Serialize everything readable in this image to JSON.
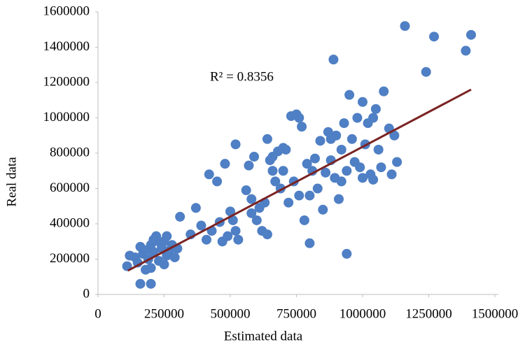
{
  "chart_data": {
    "type": "scatter",
    "xlabel": "Estimated data",
    "ylabel": "Real data",
    "annotation": "R² = 0.8356",
    "xlim": [
      0,
      1500000
    ],
    "xticks": [
      0,
      250000,
      500000,
      750000,
      1000000,
      1250000,
      1500000
    ],
    "ylim": [
      0,
      1600000
    ],
    "yticks": [
      0,
      200000,
      400000,
      600000,
      800000,
      1000000,
      1200000,
      1400000,
      1600000
    ],
    "series": [
      {
        "color": "#4f7fc4",
        "x": [
          110000,
          120000,
          140000,
          150000,
          160000,
          170000,
          180000,
          190000,
          200000,
          200000,
          210000,
          220000,
          230000,
          240000,
          250000,
          260000,
          270000,
          280000,
          290000,
          300000,
          250000,
          160000,
          200000,
          230000,
          260000,
          180000,
          210000,
          310000,
          370000,
          350000,
          390000,
          410000,
          420000,
          430000,
          450000,
          460000,
          470000,
          480000,
          490000,
          500000,
          510000,
          520000,
          530000,
          560000,
          570000,
          580000,
          590000,
          600000,
          610000,
          620000,
          630000,
          640000,
          650000,
          660000,
          670000,
          680000,
          690000,
          700000,
          710000,
          720000,
          730000,
          740000,
          750000,
          760000,
          770000,
          780000,
          790000,
          800000,
          800000,
          810000,
          820000,
          830000,
          840000,
          850000,
          860000,
          870000,
          880000,
          890000,
          895000,
          900000,
          910000,
          920000,
          930000,
          940000,
          940000,
          950000,
          960000,
          970000,
          980000,
          990000,
          1000000,
          1010000,
          1020000,
          1030000,
          1040000,
          1050000,
          1060000,
          1070000,
          1080000,
          1100000,
          1110000,
          1120000,
          1130000,
          1160000,
          1240000,
          1270000,
          1390000,
          1410000,
          520000,
          640000,
          660000,
          700000,
          580000,
          1000000,
          1040000,
          760000,
          880000,
          920000
        ],
        "y": [
          160000,
          220000,
          210000,
          180000,
          270000,
          230000,
          250000,
          200000,
          280000,
          150000,
          240000,
          330000,
          190000,
          260000,
          300000,
          220000,
          250000,
          280000,
          210000,
          260000,
          170000,
          60000,
          60000,
          300000,
          330000,
          140000,
          310000,
          440000,
          490000,
          340000,
          390000,
          310000,
          680000,
          360000,
          640000,
          410000,
          300000,
          740000,
          330000,
          470000,
          420000,
          360000,
          310000,
          590000,
          730000,
          540000,
          780000,
          420000,
          490000,
          360000,
          520000,
          880000,
          760000,
          700000,
          640000,
          810000,
          600000,
          830000,
          820000,
          520000,
          1010000,
          640000,
          1020000,
          1000000,
          950000,
          420000,
          740000,
          290000,
          560000,
          700000,
          770000,
          600000,
          870000,
          480000,
          690000,
          920000,
          760000,
          1330000,
          660000,
          900000,
          540000,
          820000,
          970000,
          230000,
          700000,
          1130000,
          880000,
          750000,
          1000000,
          720000,
          1090000,
          850000,
          970000,
          680000,
          1000000,
          1050000,
          820000,
          720000,
          1150000,
          940000,
          680000,
          900000,
          750000,
          1520000,
          1260000,
          1460000,
          1380000,
          1470000,
          850000,
          340000,
          780000,
          700000,
          460000,
          660000,
          650000,
          560000,
          880000,
          640000
        ]
      }
    ],
    "trendline": {
      "color": "#7b2323",
      "x": [
        113000,
        1410000
      ],
      "y": [
        135000,
        1160000
      ]
    }
  }
}
